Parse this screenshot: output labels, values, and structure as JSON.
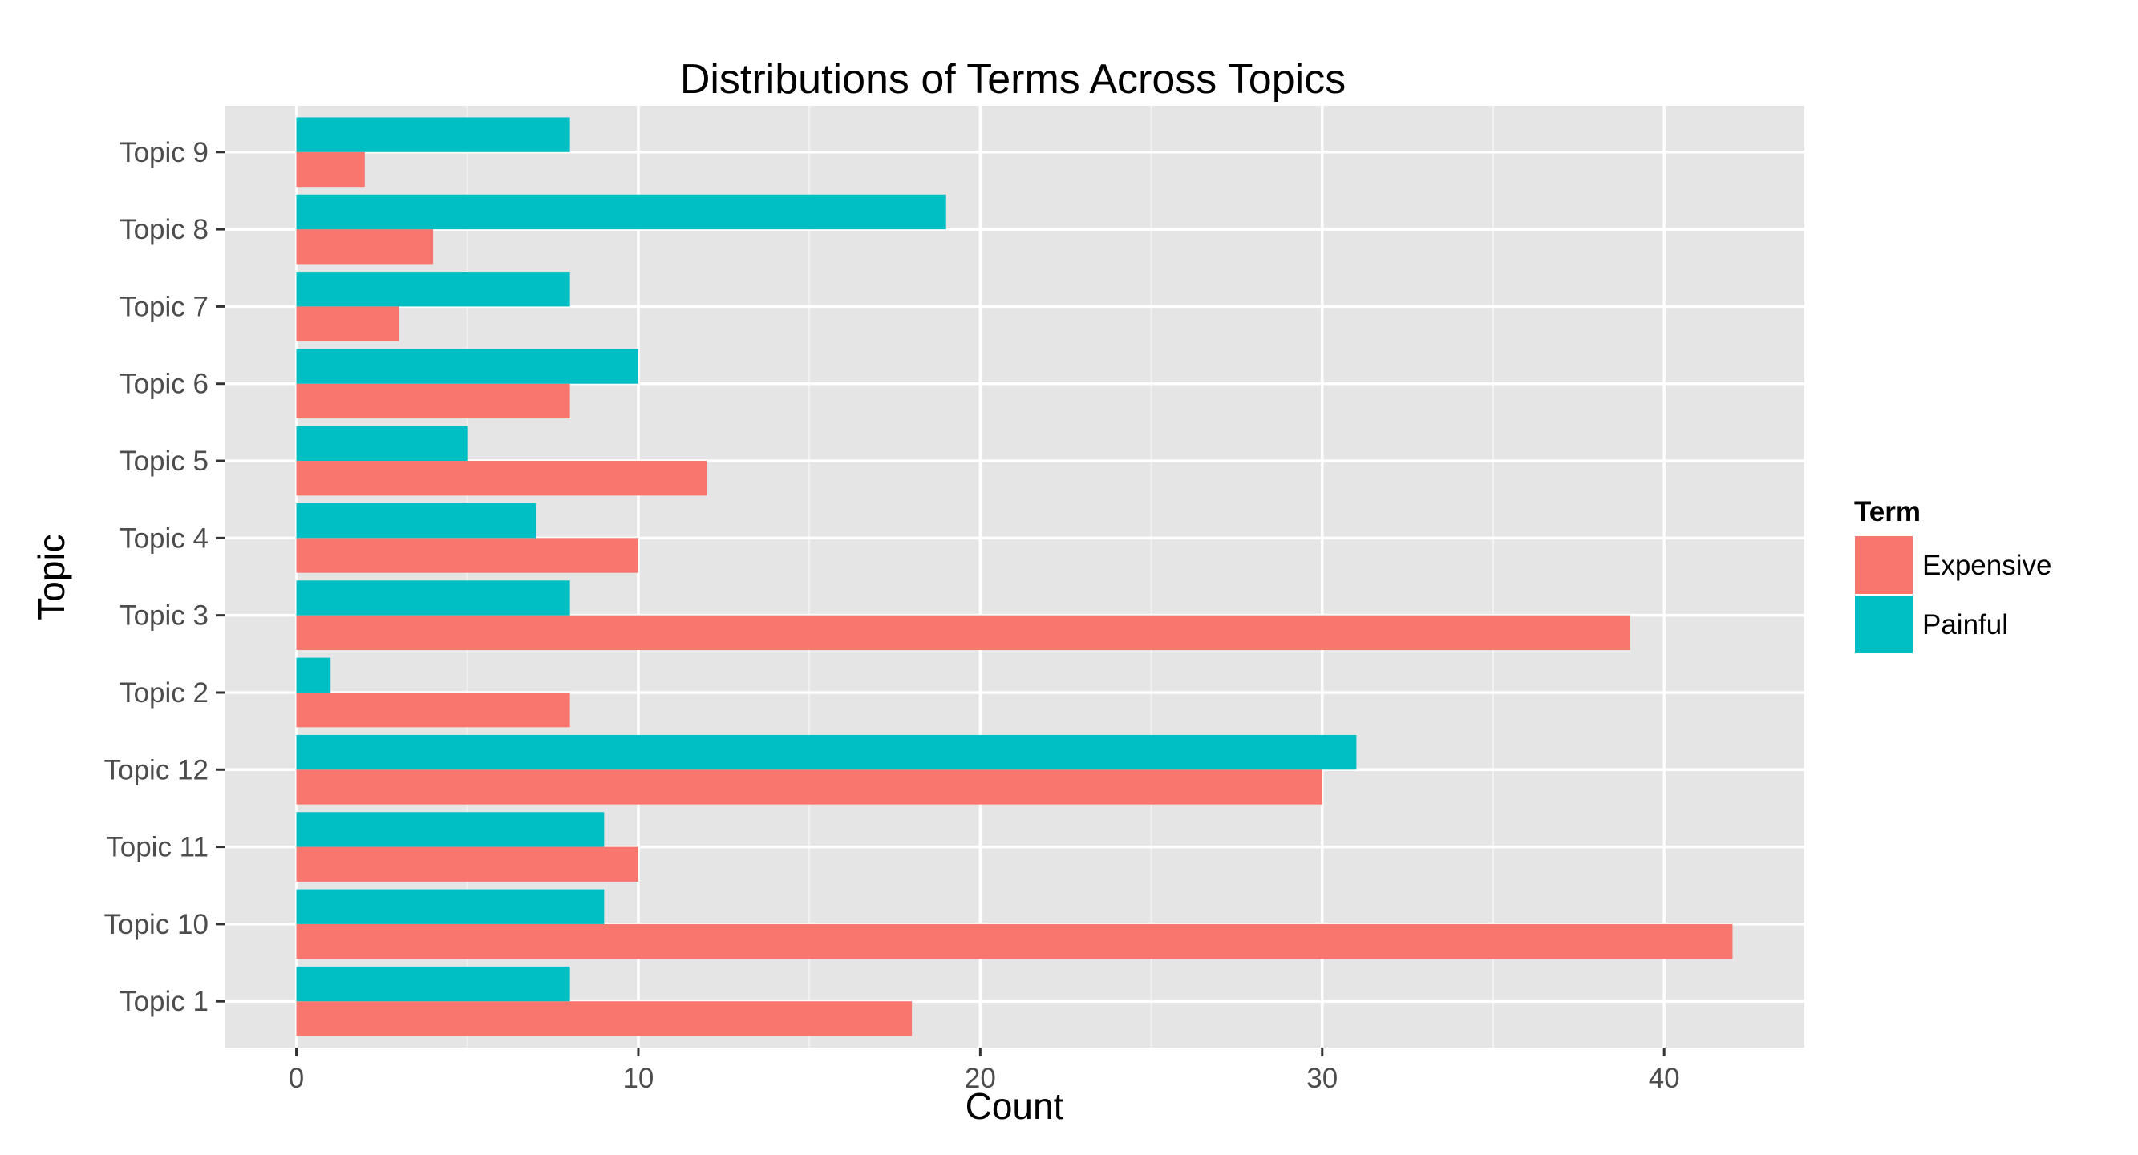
{
  "chart_data": {
    "type": "bar",
    "orientation": "horizontal",
    "title": "Distributions of Terms Across Topics",
    "xlabel": "Count",
    "ylabel": "Topic",
    "xlim": [
      -2.1,
      44.1
    ],
    "xticks": [
      0,
      10,
      20,
      30,
      40
    ],
    "categories": [
      "Topic 1",
      "Topic 10",
      "Topic 11",
      "Topic 12",
      "Topic 2",
      "Topic 3",
      "Topic 4",
      "Topic 5",
      "Topic 6",
      "Topic 7",
      "Topic 8",
      "Topic 9"
    ],
    "series": [
      {
        "name": "Expensive",
        "color": "#F8766D",
        "values": [
          18,
          42,
          10,
          30,
          8,
          39,
          10,
          12,
          8,
          3,
          4,
          2
        ]
      },
      {
        "name": "Painful",
        "color": "#00BFC4",
        "values": [
          8,
          9,
          9,
          31,
          1,
          8,
          7,
          5,
          10,
          8,
          19,
          8
        ]
      }
    ],
    "legend": {
      "title": "Term",
      "position": "right"
    },
    "grid": true,
    "panel_background": "#E5E5E5"
  }
}
